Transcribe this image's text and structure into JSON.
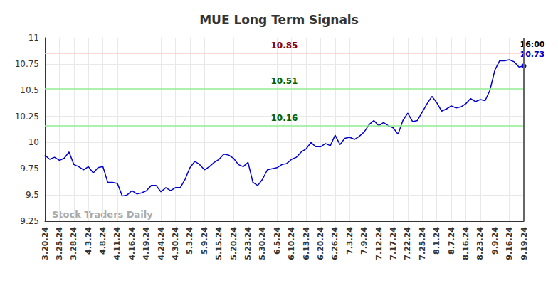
{
  "chart_data": {
    "type": "line",
    "title": "MUE Long Term Signals",
    "watermark": "Stock Traders Daily",
    "end_time_label": "16:00",
    "categories": [
      "3.20.24",
      null,
      null,
      "3.25.24",
      null,
      null,
      "3.28.24",
      null,
      null,
      "4.3.24",
      null,
      null,
      "4.8.24",
      null,
      null,
      "4.11.24",
      null,
      null,
      "4.16.24",
      null,
      null,
      "4.19.24",
      null,
      null,
      "4.24.24",
      null,
      null,
      "4.30.24",
      null,
      null,
      "5.3.24",
      null,
      null,
      "5.9.24",
      null,
      null,
      "5.15.24",
      null,
      null,
      "5.20.24",
      null,
      null,
      "5.23.24",
      null,
      null,
      "5.30.24",
      null,
      null,
      "6.5.24",
      null,
      null,
      "6.10.24",
      null,
      null,
      "6.13.24",
      null,
      null,
      "6.20.24",
      null,
      null,
      "6.26.24",
      null,
      null,
      "7.3.24",
      null,
      null,
      "7.9.24",
      null,
      null,
      "7.12.24",
      null,
      null,
      "7.17.24",
      null,
      null,
      "7.22.24",
      null,
      null,
      "7.25.24",
      null,
      null,
      "8.1.24",
      null,
      null,
      "8.7.24",
      null,
      null,
      "8.16.24",
      null,
      null,
      "8.23.24",
      null,
      null,
      "9.9.24",
      null,
      null,
      "9.16.24",
      null,
      null,
      "9.19.24"
    ],
    "values": [
      9.88,
      9.84,
      9.86,
      9.83,
      9.85,
      9.91,
      9.79,
      9.77,
      9.74,
      9.77,
      9.71,
      9.76,
      9.77,
      9.62,
      9.62,
      9.61,
      9.49,
      9.5,
      9.54,
      9.51,
      9.52,
      9.54,
      9.59,
      9.59,
      9.53,
      9.57,
      9.54,
      9.57,
      9.57,
      9.65,
      9.76,
      9.82,
      9.79,
      9.74,
      9.77,
      9.81,
      9.84,
      9.89,
      9.88,
      9.85,
      9.79,
      9.77,
      9.81,
      9.62,
      9.59,
      9.65,
      9.74,
      9.75,
      9.76,
      9.79,
      9.8,
      9.84,
      9.86,
      9.91,
      9.94,
      10.0,
      9.96,
      9.96,
      9.99,
      9.97,
      10.07,
      9.98,
      10.04,
      10.05,
      10.03,
      10.06,
      10.1,
      10.17,
      10.21,
      10.16,
      10.19,
      10.16,
      10.14,
      10.08,
      10.21,
      10.28,
      10.2,
      10.21,
      10.29,
      10.37,
      10.44,
      10.38,
      10.3,
      10.32,
      10.35,
      10.33,
      10.34,
      10.37,
      10.42,
      10.39,
      10.41,
      10.4,
      10.5,
      10.69,
      10.78,
      10.78,
      10.79,
      10.77,
      10.72,
      10.73
    ],
    "color": "#0000cc",
    "ylim": [
      9.25,
      11
    ],
    "yticks": [
      9.25,
      9.5,
      9.75,
      10,
      10.25,
      10.5,
      10.75,
      11
    ],
    "grid": true,
    "annotations": [
      {
        "value": 10.85,
        "label": "10.85",
        "color": "#8b0000",
        "line_color": "#ffcccc"
      },
      {
        "value": 10.51,
        "label": "10.51",
        "color": "#006400",
        "line_color": "#90ee90"
      },
      {
        "value": 10.16,
        "label": "10.16",
        "color": "#006400",
        "line_color": "#90ee90"
      }
    ]
  }
}
